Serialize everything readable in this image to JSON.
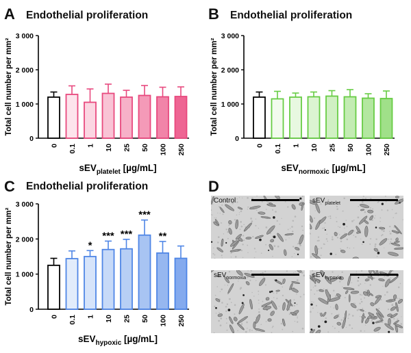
{
  "panels": {
    "A": {
      "letter": "A",
      "title": "Endothelial proliferation"
    },
    "B": {
      "letter": "B",
      "title": "Endothelial proliferation"
    },
    "C": {
      "letter": "C",
      "title": "Endothelial proliferation"
    },
    "D": {
      "letter": "D"
    }
  },
  "colors": {
    "platelet": [
      "#ffffff",
      "#fde4ec",
      "#fbd6e2",
      "#f9c3d5",
      "#f7b1c8",
      "#f49ab8",
      "#f184a8",
      "#ee6593"
    ],
    "platelet_stroke": "#e8497e",
    "normoxic": [
      "#ffffff",
      "#f2fbee",
      "#e8f8e1",
      "#dcf4d2",
      "#d0f0c3",
      "#c3ecb3",
      "#b3e7a0",
      "#a0e089"
    ],
    "normoxic_stroke": "#67cc44",
    "hypoxic": [
      "#ffffff",
      "#e2ecfb",
      "#d6e4fa",
      "#c7daf8",
      "#b7cff5",
      "#a8c4f3",
      "#96b7f0",
      "#84aaee"
    ],
    "hypoxic_stroke": "#4f86e6",
    "control_stroke": "#000000"
  },
  "chart_data": [
    {
      "type": "bar",
      "title": "Endothelial proliferation",
      "ylabel": "Total cell number per mm²",
      "xlabel_main": "sEV",
      "xlabel_sub": "platelet",
      "xlabel_unit": "[µg/mL]",
      "categories": [
        "0",
        "0.1",
        "1",
        "10",
        "25",
        "50",
        "100",
        "250"
      ],
      "values": [
        1200,
        1280,
        1050,
        1310,
        1200,
        1250,
        1210,
        1220
      ],
      "errors": [
        150,
        250,
        390,
        270,
        200,
        290,
        280,
        280
      ],
      "significance": [
        "",
        "",
        "",
        "",
        "",
        "",
        "",
        ""
      ],
      "ylim": [
        0,
        3000
      ],
      "yticks": [
        "0",
        "1 000",
        "2 000",
        "3 000"
      ],
      "color_key": "platelet"
    },
    {
      "type": "bar",
      "title": "Endothelial proliferation",
      "ylabel": "Total cell number per mm²",
      "xlabel_main": "sEV",
      "xlabel_sub": "normoxic",
      "xlabel_unit": "[µg/mL]",
      "categories": [
        "0",
        "0.1",
        "1",
        "10",
        "25",
        "50",
        "100",
        "250"
      ],
      "values": [
        1200,
        1150,
        1200,
        1210,
        1230,
        1210,
        1170,
        1160
      ],
      "errors": [
        150,
        220,
        120,
        140,
        160,
        210,
        130,
        220
      ],
      "significance": [
        "",
        "",
        "",
        "",
        "",
        "",
        "",
        ""
      ],
      "ylim": [
        0,
        3000
      ],
      "yticks": [
        "0",
        "1 000",
        "2 000",
        "3 000"
      ],
      "color_key": "normoxic"
    },
    {
      "type": "bar",
      "title": "Endothelial proliferation",
      "ylabel": "Total cell number per mm²",
      "xlabel_main": "sEV",
      "xlabel_sub": "hypoxic",
      "xlabel_unit": "[µg/mL]",
      "categories": [
        "0",
        "0.1",
        "1",
        "10",
        "25",
        "50",
        "100",
        "250"
      ],
      "values": [
        1250,
        1440,
        1500,
        1700,
        1720,
        2110,
        1600,
        1450
      ],
      "errors": [
        200,
        220,
        170,
        240,
        270,
        430,
        330,
        350
      ],
      "significance": [
        "",
        "",
        "*",
        "***",
        "***",
        "***",
        "**",
        ""
      ],
      "ylim": [
        0,
        3000
      ],
      "yticks": [
        "0",
        "1 000",
        "2 000",
        "3 000"
      ],
      "color_key": "hypoxic"
    }
  ],
  "micrographs": [
    {
      "label": "Control",
      "sub": ""
    },
    {
      "label": "sEV",
      "sub": "platelet"
    },
    {
      "label": "sEV",
      "sub": "normoxia"
    },
    {
      "label": "sEV",
      "sub": "hypoxia"
    }
  ]
}
